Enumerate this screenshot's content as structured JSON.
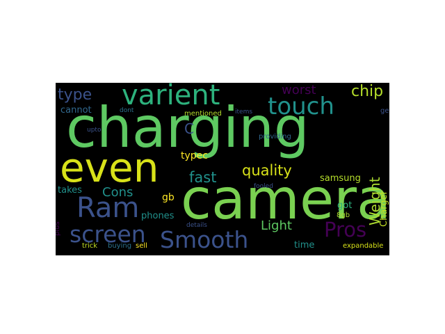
{
  "wordcloud": {
    "background": "#000000",
    "words": [
      {
        "text": "charging",
        "color": "#5ec962"
      },
      {
        "text": "camera",
        "color": "#7ad151"
      },
      {
        "text": "even",
        "color": "#d8e219"
      },
      {
        "text": "varient",
        "color": "#2db27d"
      },
      {
        "text": "Ram",
        "color": "#3b528b"
      },
      {
        "text": "touch",
        "color": "#21918c"
      },
      {
        "text": "screen",
        "color": "#3b528b"
      },
      {
        "text": "Smooth",
        "color": "#3b528b"
      },
      {
        "text": "Pros",
        "color": "#440154"
      },
      {
        "text": "type",
        "color": "#3b528b"
      },
      {
        "text": "chip",
        "color": "#b5de2b"
      },
      {
        "text": "worst",
        "color": "#440154"
      },
      {
        "text": "quality",
        "color": "#d8e219"
      },
      {
        "text": "fast",
        "color": "#21918c"
      },
      {
        "text": "Cons",
        "color": "#21918c"
      },
      {
        "text": "Light",
        "color": "#5ec962"
      },
      {
        "text": "Weight",
        "color": "#addc30"
      },
      {
        "text": "C",
        "color": "#3b528b"
      },
      {
        "text": "cannot",
        "color": "#31688e"
      },
      {
        "text": "dont",
        "color": "#2c728e"
      },
      {
        "text": "mentioned",
        "color": "#b5de2b"
      },
      {
        "text": "items",
        "color": "#3b528b"
      },
      {
        "text": "get",
        "color": "#3b528b"
      },
      {
        "text": "upto",
        "color": "#3b528b"
      },
      {
        "text": "providing",
        "color": "#31688e"
      },
      {
        "text": "typec",
        "color": "#fde725"
      },
      {
        "text": "samsung",
        "color": "#b5de2b"
      },
      {
        "text": "Charger",
        "color": "#c2df23"
      },
      {
        "text": "takes",
        "color": "#21918c"
      },
      {
        "text": "fooled",
        "color": "#3b528b"
      },
      {
        "text": "gb",
        "color": "#fde725"
      },
      {
        "text": "got",
        "color": "#2db27d"
      },
      {
        "text": "8gb",
        "color": "#addc30"
      },
      {
        "text": "plus",
        "color": "#440154"
      },
      {
        "text": "phones",
        "color": "#21918c"
      },
      {
        "text": "details",
        "color": "#3b528b"
      },
      {
        "text": "time",
        "color": "#21918c"
      },
      {
        "text": "trick",
        "color": "#c2df23"
      },
      {
        "text": "buying",
        "color": "#2c728e"
      },
      {
        "text": "sell",
        "color": "#fde725"
      },
      {
        "text": "expandable",
        "color": "#d8e219"
      }
    ]
  }
}
